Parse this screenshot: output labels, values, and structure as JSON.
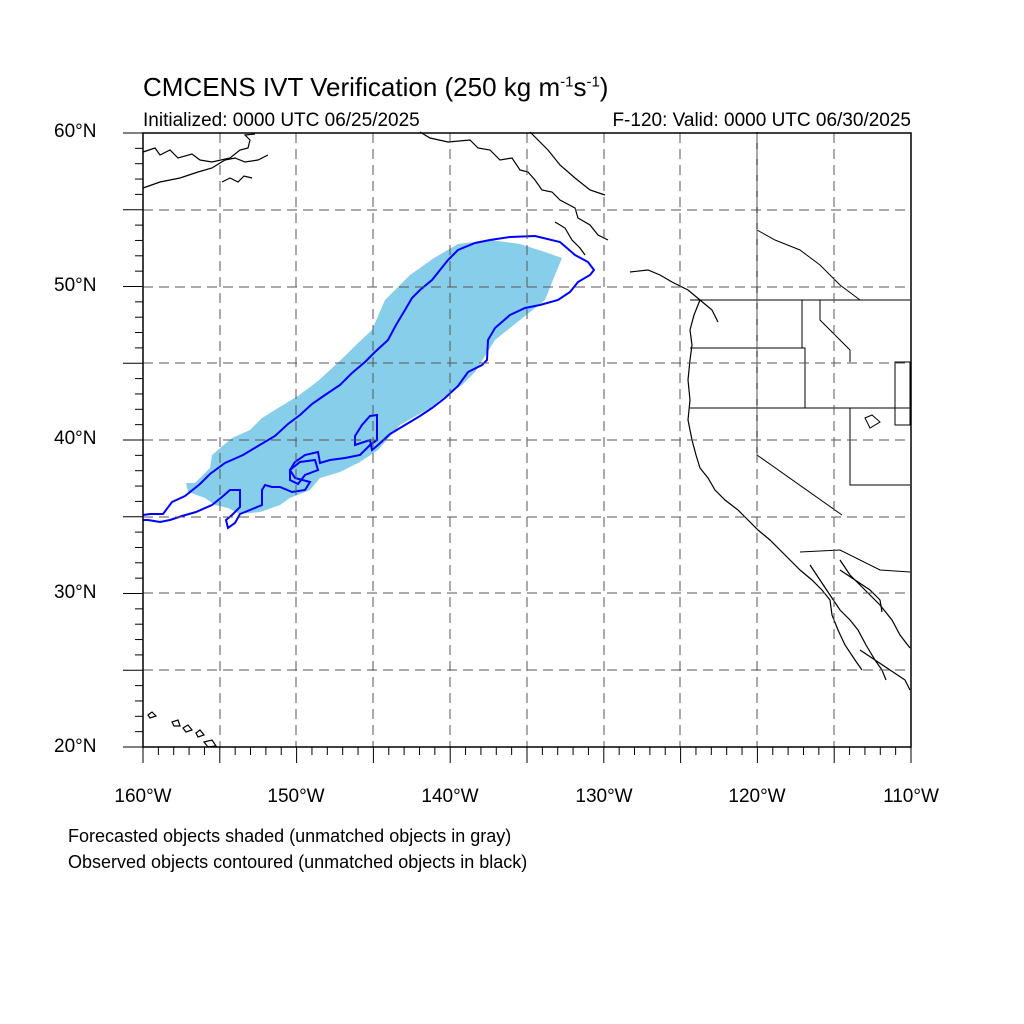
{
  "title": {
    "main": "CMCENS IVT Verification (250 kg m",
    "sup1": "-1",
    "mid": "s",
    "sup2": "-1",
    "end": ")"
  },
  "subtitle_left": "Initialized: 0000 UTC 06/25/2025",
  "subtitle_right": "F-120: Valid: 0000 UTC 06/30/2025",
  "lat_labels": [
    {
      "key": "60",
      "text": "60°N"
    },
    {
      "key": "50",
      "text": "50°N"
    },
    {
      "key": "40",
      "text": "40°N"
    },
    {
      "key": "30",
      "text": "30°N"
    },
    {
      "key": "20",
      "text": "20°N"
    }
  ],
  "lon_labels": [
    {
      "key": "160",
      "text": "160°W"
    },
    {
      "key": "150",
      "text": "150°W"
    },
    {
      "key": "140",
      "text": "140°W"
    },
    {
      "key": "130",
      "text": "130°W"
    },
    {
      "key": "120",
      "text": "120°W"
    },
    {
      "key": "110",
      "text": "110°W"
    }
  ],
  "notes": [
    "Forecasted objects shaded (unmatched objects in gray)",
    "Observed objects contoured (unmatched objects in black)"
  ],
  "colors": {
    "forecast_fill": "#87ceeb",
    "observed_contour": "#0000ff",
    "coastline": "#000000",
    "grid": "#555555"
  },
  "map_extent": {
    "lon_min": -160,
    "lon_max": -110,
    "lat_min": 20,
    "lat_max": 60
  }
}
